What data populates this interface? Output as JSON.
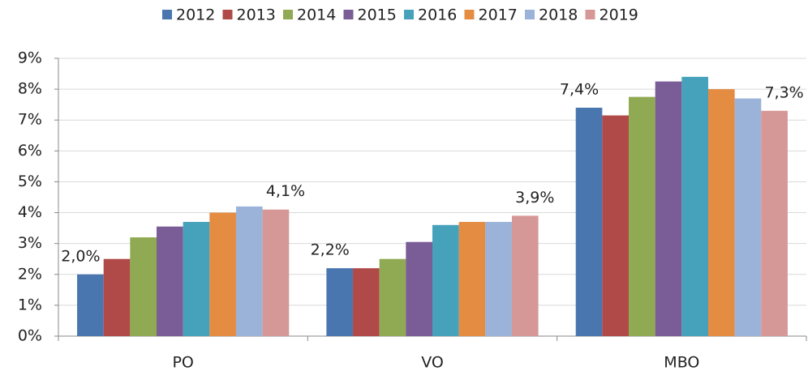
{
  "chart_data": {
    "type": "bar",
    "categories": [
      "PO",
      "VO",
      "MBO"
    ],
    "series": [
      {
        "name": "2012",
        "color": "#4a76b0",
        "values": [
          2.0,
          2.2,
          7.4
        ],
        "value_labels": [
          "2,0%",
          "2,2%",
          "7,4%"
        ]
      },
      {
        "name": "2013",
        "color": "#b04a48",
        "values": [
          2.5,
          2.2,
          7.15
        ]
      },
      {
        "name": "2014",
        "color": "#8faa52",
        "values": [
          3.2,
          2.5,
          7.75
        ]
      },
      {
        "name": "2015",
        "color": "#7a5c96",
        "values": [
          3.55,
          3.05,
          8.25
        ]
      },
      {
        "name": "2016",
        "color": "#46a1bb",
        "values": [
          3.7,
          3.6,
          8.4
        ]
      },
      {
        "name": "2017",
        "color": "#e48c42",
        "values": [
          4.0,
          3.7,
          8.0
        ]
      },
      {
        "name": "2018",
        "color": "#9bb3d9",
        "values": [
          4.2,
          3.7,
          7.7
        ]
      },
      {
        "name": "2019",
        "color": "#d69896",
        "values": [
          4.1,
          3.9,
          7.3
        ],
        "value_labels": [
          "4,1%",
          "3,9%",
          "7,3%"
        ]
      }
    ],
    "ylim": [
      0,
      9
    ],
    "yticks": [
      {
        "value": 0,
        "label": "0%"
      },
      {
        "value": 1,
        "label": "1%"
      },
      {
        "value": 2,
        "label": "2%"
      },
      {
        "value": 3,
        "label": "3%"
      },
      {
        "value": 4,
        "label": "4%"
      },
      {
        "value": 5,
        "label": "5%"
      },
      {
        "value": 6,
        "label": "6%"
      },
      {
        "value": 7,
        "label": "7%"
      },
      {
        "value": 8,
        "label": "8%"
      },
      {
        "value": 9,
        "label": "9%"
      }
    ],
    "grid": true,
    "legend": "top"
  }
}
